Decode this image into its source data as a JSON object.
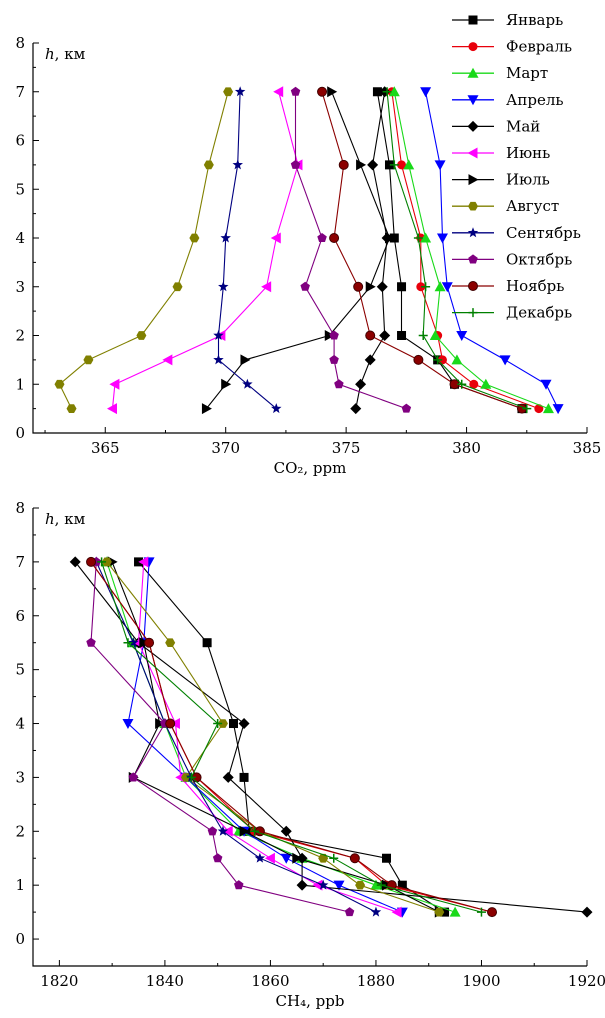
{
  "colors": {
    "Январь": "#000000",
    "Февраль": "#e8000b",
    "Март": "#19d919",
    "Апрель": "#0000ff",
    "Май": "#000000",
    "Июнь": "#ff00ff",
    "Июль": "#000000",
    "Август": "#808000",
    "Сентябрь": "#000080",
    "Октябрь": "#800080",
    "Ноябрь": "#8b0000",
    "Декабрь": "#008000"
  },
  "markers": {
    "Январь": "square",
    "Февраль": "circle",
    "Март": "triangle-up",
    "Апрель": "triangle-down",
    "Май": "diamond",
    "Июнь": "triangle-left",
    "Июль": "triangle-right",
    "Август": "hexagon",
    "Сентябрь": "star",
    "Октябрь": "pentagon",
    "Ноябрь": "circle-shaded",
    "Декабрь": "plus"
  },
  "chart_data": [
    {
      "type": "line",
      "xlabel": "CO₂, ppm",
      "ylabel_var": "h",
      "ylabel_unit": ", км",
      "xlim": [
        362,
        385
      ],
      "ylim": [
        0,
        8
      ],
      "xticks": [
        365,
        370,
        375,
        380,
        385
      ],
      "yticks": [
        0,
        1,
        2,
        3,
        4,
        5,
        6,
        7,
        8
      ],
      "grid": false,
      "legend": "top-right outside",
      "series": [
        {
          "name": "Январь",
          "points": [
            [
              382.3,
              0.5
            ],
            [
              379.5,
              1.0
            ],
            [
              378.8,
              1.5
            ],
            [
              377.3,
              2.0
            ],
            [
              377.3,
              3.0
            ],
            [
              377.0,
              4.0
            ],
            [
              376.8,
              5.5
            ],
            [
              376.3,
              7.0
            ]
          ]
        },
        {
          "name": "Февраль",
          "points": [
            [
              383.0,
              0.5
            ],
            [
              380.3,
              1.0
            ],
            [
              379.0,
              1.5
            ],
            [
              378.8,
              2.0
            ],
            [
              378.1,
              3.0
            ],
            [
              378.1,
              4.0
            ],
            [
              377.3,
              5.5
            ],
            [
              376.9,
              7.0
            ]
          ]
        },
        {
          "name": "Март",
          "points": [
            [
              383.4,
              0.5
            ],
            [
              380.8,
              1.0
            ],
            [
              379.6,
              1.5
            ],
            [
              378.7,
              2.0
            ],
            [
              378.9,
              3.0
            ],
            [
              378.3,
              4.0
            ],
            [
              377.6,
              5.5
            ],
            [
              377.0,
              7.0
            ]
          ]
        },
        {
          "name": "Апрель",
          "points": [
            [
              383.8,
              0.5
            ],
            [
              383.3,
              1.0
            ],
            [
              381.6,
              1.5
            ],
            [
              379.8,
              2.0
            ],
            [
              379.2,
              3.0
            ],
            [
              379.0,
              4.0
            ],
            [
              378.9,
              5.5
            ],
            [
              378.3,
              7.0
            ]
          ]
        },
        {
          "name": "Май",
          "points": [
            [
              375.4,
              0.5
            ],
            [
              375.6,
              1.0
            ],
            [
              376.0,
              1.5
            ],
            [
              376.6,
              2.0
            ],
            [
              376.5,
              3.0
            ],
            [
              376.7,
              4.0
            ],
            [
              376.1,
              5.5
            ],
            [
              376.6,
              7.0
            ]
          ]
        },
        {
          "name": "Июнь",
          "points": [
            [
              365.3,
              0.5
            ],
            [
              365.4,
              1.0
            ],
            [
              367.6,
              1.5
            ],
            [
              369.8,
              2.0
            ],
            [
              371.7,
              3.0
            ],
            [
              372.1,
              4.0
            ],
            [
              373.0,
              5.5
            ],
            [
              372.2,
              7.0
            ]
          ]
        },
        {
          "name": "Июль",
          "points": [
            [
              369.2,
              0.5
            ],
            [
              370.0,
              1.0
            ],
            [
              370.8,
              1.5
            ],
            [
              374.3,
              2.0
            ],
            [
              376.0,
              3.0
            ],
            [
              376.8,
              4.0
            ],
            [
              375.6,
              5.5
            ],
            [
              374.4,
              7.0
            ]
          ]
        },
        {
          "name": "Август",
          "points": [
            [
              363.6,
              0.5
            ],
            [
              363.1,
              1.0
            ],
            [
              364.3,
              1.5
            ],
            [
              366.5,
              2.0
            ],
            [
              368.0,
              3.0
            ],
            [
              368.7,
              4.0
            ],
            [
              369.3,
              5.5
            ],
            [
              370.1,
              7.0
            ]
          ]
        },
        {
          "name": "Сентябрь",
          "points": [
            [
              372.1,
              0.5
            ],
            [
              370.9,
              1.0
            ],
            [
              369.7,
              1.5
            ],
            [
              369.7,
              2.0
            ],
            [
              369.9,
              3.0
            ],
            [
              370.0,
              4.0
            ],
            [
              370.5,
              5.5
            ],
            [
              370.6,
              7.0
            ]
          ]
        },
        {
          "name": "Октябрь",
          "points": [
            [
              377.5,
              0.5
            ],
            [
              374.7,
              1.0
            ],
            [
              374.5,
              1.5
            ],
            [
              374.5,
              2.0
            ],
            [
              373.3,
              3.0
            ],
            [
              374.0,
              4.0
            ],
            [
              372.9,
              5.5
            ],
            [
              372.9,
              7.0
            ]
          ]
        },
        {
          "name": "Ноябрь",
          "points": [
            [
              382.3,
              0.5
            ],
            [
              379.5,
              1.0
            ],
            [
              378.0,
              1.5
            ],
            [
              376.0,
              2.0
            ],
            [
              375.5,
              3.0
            ],
            [
              374.5,
              4.0
            ],
            [
              374.9,
              5.5
            ],
            [
              374.0,
              7.0
            ]
          ]
        },
        {
          "name": "Декабрь",
          "points": [
            [
              382.5,
              0.5
            ],
            [
              379.8,
              1.0
            ],
            [
              378.8,
              1.5
            ],
            [
              378.2,
              2.0
            ],
            [
              378.3,
              3.0
            ],
            [
              378.0,
              4.0
            ],
            [
              377.0,
              5.5
            ],
            [
              376.7,
              7.0
            ]
          ]
        }
      ]
    },
    {
      "type": "line",
      "xlabel": "CH₄, ppb",
      "ylabel_var": "h",
      "ylabel_unit": ", км",
      "xlim": [
        1815,
        1920
      ],
      "ylim": [
        -0.5,
        8
      ],
      "xticks": [
        1820,
        1840,
        1860,
        1880,
        1900,
        1920
      ],
      "yticks": [
        0,
        1,
        2,
        3,
        4,
        5,
        6,
        7,
        8
      ],
      "grid": false,
      "series": [
        {
          "name": "Январь",
          "points": [
            [
              1893,
              0.5
            ],
            [
              1885,
              1.0
            ],
            [
              1882,
              1.5
            ],
            [
              1856,
              2.0
            ],
            [
              1855,
              3.0
            ],
            [
              1853,
              4.0
            ],
            [
              1848,
              5.5
            ],
            [
              1835,
              7.0
            ]
          ]
        },
        {
          "name": "Февраль",
          "points": [
            [
              1902,
              0.5
            ],
            [
              1882,
              1.0
            ],
            [
              1876,
              1.5
            ],
            [
              1857,
              2.0
            ],
            [
              1846,
              3.0
            ],
            [
              1841,
              4.0
            ],
            [
              1837,
              5.5
            ],
            [
              1826,
              7.0
            ]
          ]
        },
        {
          "name": "Март",
          "points": [
            [
              1895,
              0.5
            ],
            [
              1880,
              1.0
            ],
            [
              1866,
              1.5
            ],
            [
              1854,
              2.0
            ],
            [
              1844,
              3.0
            ],
            [
              1840,
              4.0
            ],
            [
              1834,
              5.5
            ],
            [
              1829,
              7.0
            ]
          ]
        },
        {
          "name": "Апрель",
          "points": [
            [
              1885,
              0.5
            ],
            [
              1873,
              1.0
            ],
            [
              1863,
              1.5
            ],
            [
              1855,
              2.0
            ],
            [
              1844,
              3.0
            ],
            [
              1833,
              4.0
            ],
            [
              1836,
              5.5
            ],
            [
              1837,
              7.0
            ]
          ]
        },
        {
          "name": "Май",
          "points": [
            [
              1920,
              0.5
            ],
            [
              1866,
              1.0
            ],
            [
              1866,
              1.5
            ],
            [
              1863,
              2.0
            ],
            [
              1852,
              3.0
            ],
            [
              1855,
              4.0
            ],
            [
              1835,
              5.5
            ],
            [
              1823,
              7.0
            ]
          ]
        },
        {
          "name": "Июнь",
          "points": [
            [
              1884,
              0.5
            ],
            [
              1869,
              1.0
            ],
            [
              1860,
              1.5
            ],
            [
              1852,
              2.0
            ],
            [
              1843,
              3.0
            ],
            [
              1842,
              4.0
            ],
            [
              1835,
              5.5
            ],
            [
              1836,
              7.0
            ]
          ]
        },
        {
          "name": "Июль",
          "points": [
            [
              1892,
              0.5
            ],
            [
              1882,
              1.0
            ],
            [
              1865,
              1.5
            ],
            [
              1855,
              2.0
            ],
            [
              1834,
              3.0
            ],
            [
              1839,
              4.0
            ],
            [
              1836,
              5.5
            ],
            [
              1830,
              7.0
            ]
          ]
        },
        {
          "name": "Август",
          "points": [
            [
              1892,
              0.5
            ],
            [
              1877,
              1.0
            ],
            [
              1870,
              1.5
            ],
            [
              1858,
              2.0
            ],
            [
              1844,
              3.0
            ],
            [
              1851,
              4.0
            ],
            [
              1841,
              5.5
            ],
            [
              1829,
              7.0
            ]
          ]
        },
        {
          "name": "Сентябрь",
          "points": [
            [
              1880,
              0.5
            ],
            [
              1870,
              1.0
            ],
            [
              1858,
              1.5
            ],
            [
              1851,
              2.0
            ],
            [
              1845,
              3.0
            ],
            [
              1840,
              4.0
            ],
            [
              1834,
              5.5
            ],
            [
              1827,
              7.0
            ]
          ]
        },
        {
          "name": "Октябрь",
          "points": [
            [
              1875,
              0.5
            ],
            [
              1854,
              1.0
            ],
            [
              1850,
              1.5
            ],
            [
              1849,
              2.0
            ],
            [
              1834,
              3.0
            ],
            [
              1840,
              4.0
            ],
            [
              1826,
              5.5
            ],
            [
              1827,
              7.0
            ]
          ]
        },
        {
          "name": "Ноябрь",
          "points": [
            [
              1902,
              0.5
            ],
            [
              1883,
              1.0
            ],
            [
              1876,
              1.5
            ],
            [
              1858,
              2.0
            ],
            [
              1846,
              3.0
            ],
            [
              1841,
              4.0
            ],
            [
              1837,
              5.5
            ],
            [
              1826,
              7.0
            ]
          ]
        },
        {
          "name": "Декабрь",
          "points": [
            [
              1900,
              0.5
            ],
            [
              1881,
              1.0
            ],
            [
              1872,
              1.5
            ],
            [
              1857,
              2.0
            ],
            [
              1845,
              3.0
            ],
            [
              1850,
              4.0
            ],
            [
              1833,
              5.5
            ],
            [
              1828,
              7.0
            ]
          ]
        }
      ]
    }
  ]
}
